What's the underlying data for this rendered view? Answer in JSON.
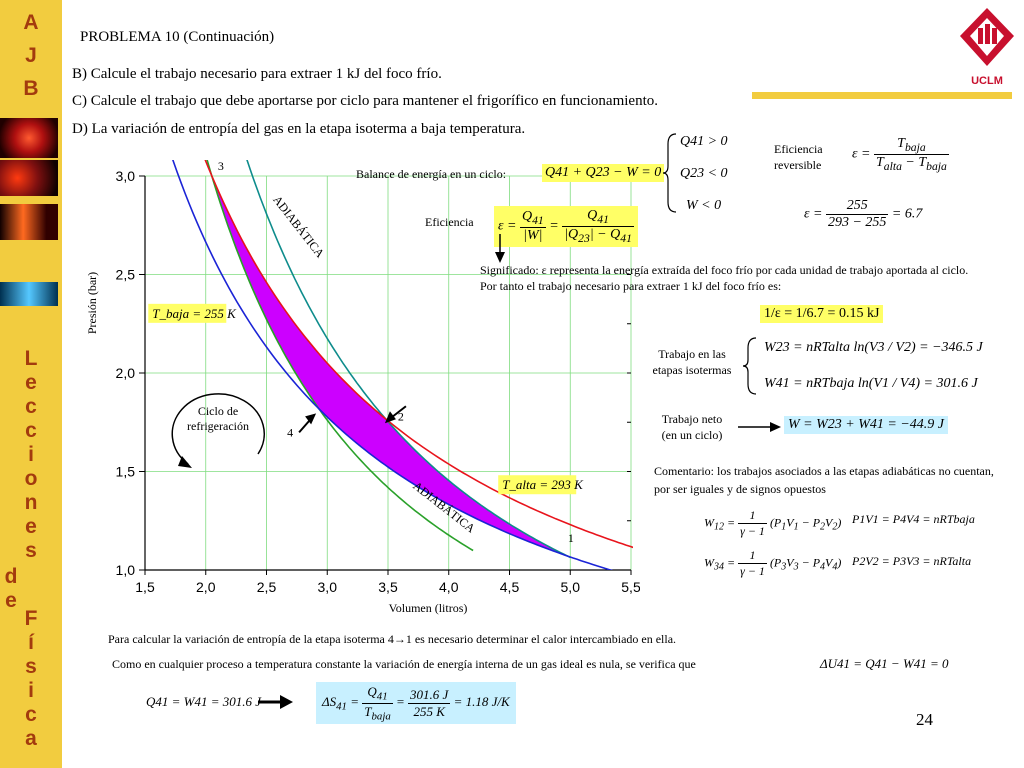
{
  "sidebar": {
    "letters_top": [
      "A",
      "J",
      "B"
    ],
    "letters_bottom": [
      "L",
      "e",
      "c",
      "c",
      "i",
      "o",
      "n",
      "e",
      "s",
      "d",
      "e",
      "F",
      "í",
      "s",
      "i",
      "c",
      "a"
    ]
  },
  "logo": {
    "label": "UCLM"
  },
  "header": {
    "title": "PROBLEMA 10 (Continuación)",
    "q_b": "B) Calcule el trabajo necesario para extraer 1 kJ del foco frío.",
    "q_c": "C) Calcule el trabajo que debe aportarse por ciclo para mantener el frigorífico en funcionamiento.",
    "q_d": "D) La variación de entropía del gas en la etapa isoterma a baja temperatura."
  },
  "annotations": {
    "balance_label": "Balance de energía en un ciclo:",
    "balance_eq": "Q41 + Q23 − W = 0",
    "signs": [
      "Q41 > 0",
      "Q23 < 0",
      "W < 0"
    ],
    "eficiencia_label": "Eficiencia",
    "eficiencia_rev_label_1": "Eficiencia",
    "eficiencia_rev_label_2": "reversible",
    "eps_value": "= 6.7",
    "eps_num": "255",
    "eps_den": "293 − 255",
    "significado": "Significado: ε representa la energía extraída del foco frío por cada unidad de trabajo aportada al ciclo. Por tanto el trabajo necesario para extraer 1 kJ del foco frío es:",
    "result_b": "1/ε = 1/6.7 = 0.15 kJ",
    "trabajo_isotermas_label": "Trabajo en las etapas isotermas",
    "w23": "W23 = nRTalta ln(V3 / V2)  = −346.5 J",
    "w41": "W41 = nRTbaja ln(V1 / V4)  = 301.6 J",
    "trabajo_neto_label_1": "Trabajo neto",
    "trabajo_neto_label_2": "(en un ciclo)",
    "w_total": "W = W23 + W41 = −44.9 J",
    "comentario": "Comentario: los trabajos asociados a las etapas adiabáticas no cuentan, por ser iguales y de signos opuestos",
    "w12": "W12 = 1/(γ − 1) (P1V1 − P2V2)",
    "w34": "W34 = 1/(γ − 1) (P3V3 − P4V4)",
    "iso1": "P1V1 = P4V4 = nRTbaja",
    "iso2": "P2V2 = P3V3 = nRTalta",
    "entropy_intro": "Para calcular la variación de entropía de la etapa isoterma 4→1 es necesario determinar el calor intercambiado en ella.",
    "entropy_text": "Como en cualquier proceso a temperatura constante la variación de energía interna de un gas ideal es nula, se verifica que",
    "du_eq": "ΔU41 = Q41 − W41 = 0",
    "q41_eq": "Q41 = W41 = 301.6 J",
    "ds_eq": "ΔS41 = Q41/Tbaja = 301.6 J / 255 K = 1.18 J/K",
    "ds_value": "= 1.18 J/K",
    "page_number": "24"
  },
  "chart_data": {
    "type": "line",
    "title": "",
    "xlabel": "Volumen (litros)",
    "ylabel": "Presión (bar)",
    "xlim": [
      1.5,
      5.5
    ],
    "ylim": [
      1.0,
      3.0
    ],
    "x_ticks": [
      "1,5",
      "2,0",
      "2,5",
      "3,0",
      "3,5",
      "4,0",
      "4,5",
      "5,0",
      "5,5"
    ],
    "y_ticks": [
      "1,0",
      "1,5",
      "2,0",
      "2,5",
      "3,0"
    ],
    "grid": true,
    "points": [
      {
        "label": "1",
        "x": 4.98,
        "y": 1.07
      },
      {
        "label": "2",
        "x": 3.45,
        "y": 1.75
      },
      {
        "label": "3",
        "x": 2.05,
        "y": 3.0
      },
      {
        "label": "4",
        "x": 2.9,
        "y": 1.79
      }
    ],
    "isotherms": [
      {
        "name": "T_alta",
        "label": "T_alta = 293 K",
        "color": "#e8141c",
        "pv": 6.15
      },
      {
        "name": "T_baja",
        "label": "T_baja = 255 K",
        "color": "#1b24d6",
        "pv": 5.33
      }
    ],
    "adiabats": [
      {
        "label": "ADIABÁTICA",
        "color": "#2aa12a"
      },
      {
        "label": "ADIABÁTICA",
        "color": "#0e8c8c"
      }
    ],
    "cycle_label": "Ciclo de refrigeración",
    "cycle_fill": "#cc00ff"
  }
}
